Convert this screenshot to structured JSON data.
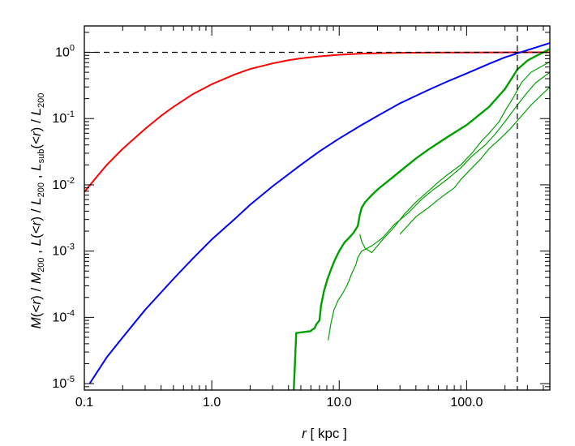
{
  "chart_data": {
    "type": "line",
    "x_scale": "log",
    "y_scale": "log",
    "xlim": [
      0.1,
      450
    ],
    "ylim": [
      8e-06,
      2.5
    ],
    "x_ticks": [
      {
        "value": 0.1,
        "label": "0.1"
      },
      {
        "value": 1,
        "label": "1.0"
      },
      {
        "value": 10,
        "label": "10.0"
      },
      {
        "value": 100,
        "label": "100.0"
      }
    ],
    "y_ticks": [
      {
        "value": 1e-05,
        "base": "10",
        "exp": "-5"
      },
      {
        "value": 0.0001,
        "base": "10",
        "exp": "-4"
      },
      {
        "value": 0.001,
        "base": "10",
        "exp": "-3"
      },
      {
        "value": 0.01,
        "base": "10",
        "exp": "-2"
      },
      {
        "value": 0.1,
        "base": "10",
        "exp": "-1"
      },
      {
        "value": 1,
        "base": "10",
        "exp": "0"
      }
    ],
    "xlabel": {
      "var": "r",
      "rest": " [ kpc ]"
    },
    "ylabel": {
      "p1_var": "M",
      "p1_open": "(<",
      "p1_r": "r",
      "p1_close": ") / ",
      "p1_den": "M",
      "p1_den_sub": "200",
      "sep1": " ,  ",
      "p2_var": "L",
      "p2_open": "(<",
      "p2_r": "r",
      "p2_close": ") / ",
      "p2_den": "L",
      "p2_den_sub": "200",
      "sep2": " ,  ",
      "p3_var": "L",
      "p3_sub": "sub",
      "p3_open": "(<",
      "p3_r": "r",
      "p3_close": ") / ",
      "p3_den": "L",
      "p3_den_sub": "200"
    },
    "reference_lines": [
      {
        "orientation": "horizontal",
        "value": 1,
        "style": "dashed",
        "color": "#000000"
      },
      {
        "orientation": "vertical",
        "value": 250,
        "style": "dashed",
        "color": "#000000"
      }
    ],
    "series": [
      {
        "color": "#ff0000",
        "width": 2,
        "points": [
          [
            0.1,
            0.0078
          ],
          [
            0.12,
            0.012
          ],
          [
            0.15,
            0.02
          ],
          [
            0.2,
            0.035
          ],
          [
            0.3,
            0.07
          ],
          [
            0.4,
            0.11
          ],
          [
            0.5,
            0.15
          ],
          [
            0.7,
            0.23
          ],
          [
            1,
            0.33
          ],
          [
            1.5,
            0.46
          ],
          [
            2,
            0.56
          ],
          [
            3,
            0.68
          ],
          [
            4,
            0.76
          ],
          [
            5,
            0.81
          ],
          [
            7,
            0.87
          ],
          [
            10,
            0.92
          ],
          [
            15,
            0.955
          ],
          [
            20,
            0.97
          ],
          [
            30,
            0.983
          ],
          [
            50,
            0.99
          ],
          [
            100,
            0.995
          ],
          [
            200,
            0.998
          ],
          [
            300,
            1.0
          ],
          [
            450,
            1.0
          ]
        ]
      },
      {
        "color": "#0000ff",
        "width": 2,
        "points": [
          [
            0.11,
            1e-05
          ],
          [
            0.15,
            2.5e-05
          ],
          [
            0.2,
            5e-05
          ],
          [
            0.3,
            0.00013
          ],
          [
            0.5,
            0.00038
          ],
          [
            0.7,
            0.00075
          ],
          [
            1,
            0.0015
          ],
          [
            1.5,
            0.003
          ],
          [
            2,
            0.005
          ],
          [
            3,
            0.0095
          ],
          [
            5,
            0.02
          ],
          [
            7,
            0.032
          ],
          [
            10,
            0.05
          ],
          [
            15,
            0.08
          ],
          [
            20,
            0.11
          ],
          [
            30,
            0.17
          ],
          [
            50,
            0.27
          ],
          [
            70,
            0.36
          ],
          [
            100,
            0.48
          ],
          [
            150,
            0.67
          ],
          [
            200,
            0.84
          ],
          [
            300,
            1.08
          ],
          [
            450,
            1.38
          ]
        ]
      },
      {
        "color": "#00a000",
        "width": 2.4,
        "points": [
          [
            4.4,
            8e-06
          ],
          [
            4.55,
            3.5e-05
          ],
          [
            4.6,
            5.8e-05
          ],
          [
            6.0,
            6.2e-05
          ],
          [
            6.1,
            6.5e-05
          ],
          [
            6.4,
            6.8e-05
          ],
          [
            6.6,
            7.8e-05
          ],
          [
            7.0,
            9e-05
          ],
          [
            7.2,
            0.00015
          ],
          [
            7.6,
            0.00025
          ],
          [
            8.1,
            0.00038
          ],
          [
            8.6,
            0.00052
          ],
          [
            9.2,
            0.00072
          ],
          [
            10,
            0.001
          ],
          [
            11,
            0.00135
          ],
          [
            12,
            0.0016
          ],
          [
            13,
            0.0019
          ],
          [
            14,
            0.0024
          ],
          [
            14.5,
            0.0035
          ],
          [
            15,
            0.0045
          ],
          [
            16,
            0.0055
          ],
          [
            18,
            0.007
          ],
          [
            20,
            0.0085
          ],
          [
            25,
            0.012
          ],
          [
            30,
            0.016
          ],
          [
            40,
            0.025
          ],
          [
            50,
            0.034
          ],
          [
            70,
            0.052
          ],
          [
            100,
            0.08
          ],
          [
            150,
            0.15
          ],
          [
            200,
            0.28
          ],
          [
            250,
            0.55
          ],
          [
            300,
            0.75
          ],
          [
            350,
            0.88
          ],
          [
            450,
            1.12
          ]
        ]
      },
      {
        "color": "#00a000",
        "width": 1.2,
        "points": [
          [
            14.5,
            0.0018
          ],
          [
            15,
            0.0014
          ],
          [
            16,
            0.0011
          ],
          [
            18,
            0.00095
          ],
          [
            22,
            0.0015
          ],
          [
            27,
            0.0023
          ],
          [
            32,
            0.0035
          ],
          [
            40,
            0.0055
          ],
          [
            50,
            0.008
          ],
          [
            60,
            0.011
          ],
          [
            70,
            0.014
          ],
          [
            90,
            0.02
          ],
          [
            110,
            0.03
          ],
          [
            130,
            0.045
          ],
          [
            150,
            0.06
          ],
          [
            180,
            0.09
          ],
          [
            200,
            0.13
          ],
          [
            230,
            0.2
          ],
          [
            270,
            0.35
          ],
          [
            320,
            0.5
          ],
          [
            380,
            0.6
          ],
          [
            450,
            0.72
          ]
        ]
      },
      {
        "color": "#00a000",
        "width": 1.2,
        "points": [
          [
            8.2,
            4.5e-05
          ],
          [
            8.6,
            8e-05
          ],
          [
            9.1,
            0.00013
          ],
          [
            9.8,
            0.00018
          ],
          [
            10.5,
            0.00022
          ],
          [
            11.5,
            0.0003
          ],
          [
            12.5,
            0.00045
          ],
          [
            13.5,
            0.00062
          ],
          [
            14,
            0.0008
          ],
          [
            15,
            0.001
          ],
          [
            18,
            0.0012
          ],
          [
            22,
            0.0016
          ],
          [
            27,
            0.0025
          ],
          [
            35,
            0.0038
          ],
          [
            45,
            0.0062
          ],
          [
            55,
            0.0085
          ],
          [
            70,
            0.012
          ],
          [
            90,
            0.018
          ],
          [
            110,
            0.027
          ],
          [
            140,
            0.04
          ],
          [
            170,
            0.06
          ],
          [
            200,
            0.09
          ],
          [
            250,
            0.16
          ],
          [
            300,
            0.25
          ],
          [
            350,
            0.35
          ],
          [
            450,
            0.5
          ]
        ]
      },
      {
        "color": "#00a000",
        "width": 1.2,
        "points": [
          [
            30,
            0.0018
          ],
          [
            35,
            0.0025
          ],
          [
            40,
            0.0033
          ],
          [
            50,
            0.0045
          ],
          [
            60,
            0.006
          ],
          [
            70,
            0.0075
          ],
          [
            80,
            0.009
          ],
          [
            90,
            0.012
          ],
          [
            110,
            0.018
          ],
          [
            130,
            0.025
          ],
          [
            150,
            0.035
          ],
          [
            180,
            0.048
          ],
          [
            220,
            0.07
          ],
          [
            270,
            0.11
          ],
          [
            320,
            0.16
          ],
          [
            380,
            0.22
          ],
          [
            450,
            0.3
          ]
        ]
      }
    ]
  }
}
